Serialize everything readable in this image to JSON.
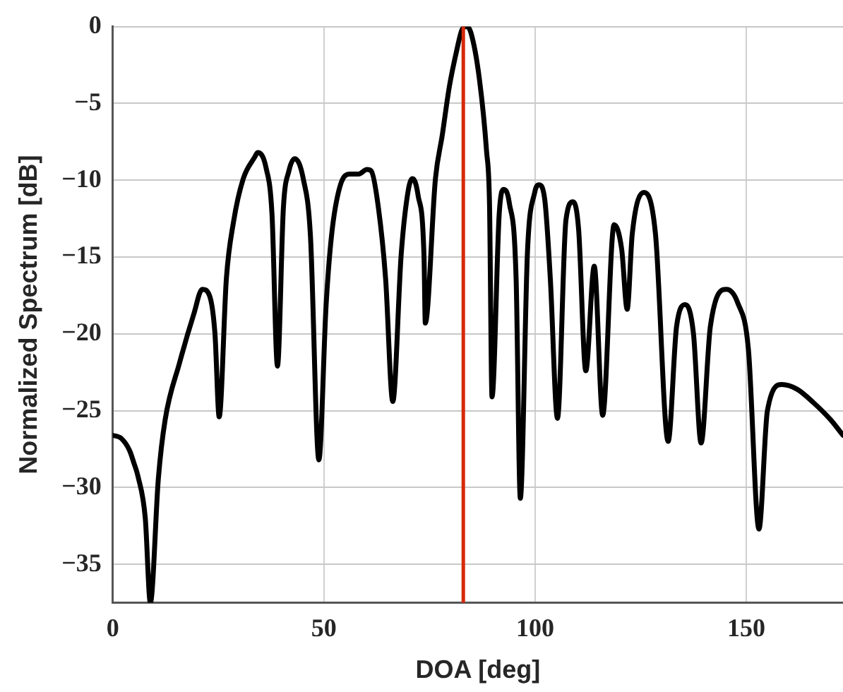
{
  "chart_data": {
    "type": "line",
    "xlabel": "DOA [deg]",
    "ylabel": "Normalized Spectrum [dB]",
    "x": [
      0,
      2,
      4,
      5,
      6,
      7.7,
      8.9,
      10.8,
      12.4,
      15.8,
      19.2,
      21.2,
      22.9,
      24.2,
      25.2,
      26.9,
      28.6,
      30.9,
      33.6,
      34.3,
      36.3,
      37.7,
      39.0,
      40.4,
      41.7,
      43.1,
      45.1,
      46.8,
      48.8,
      50.5,
      51.8,
      53.8,
      56.2,
      57.2,
      58.2,
      60.2,
      61.2,
      62.9,
      64.6,
      66.3,
      68.3,
      70,
      71,
      72.3,
      73.7,
      74.0,
      76.4,
      78,
      79.7,
      81.4,
      82.7,
      83.8,
      84.8,
      86.8,
      88.5,
      89.2,
      89.8,
      91.5,
      92.5,
      93.9,
      95.5,
      96.5,
      98.2,
      99.9,
      100.9,
      102.3,
      103.6,
      105.3,
      107.3,
      109,
      110.3,
      112,
      114,
      116,
      118.7,
      120.5,
      121.8,
      123,
      125.8,
      128.5,
      131.5,
      133.5,
      135.6,
      137.5,
      139.3,
      141.5,
      145.3,
      148,
      150.5,
      153,
      155,
      158.4,
      162,
      166,
      170,
      172.9
    ],
    "series": [
      {
        "color": "#000000",
        "values": [
          -26.6,
          -26.8,
          -27.6,
          -28.4,
          -29.3,
          -32,
          -37.5,
          -29.4,
          -25.6,
          -21.9,
          -18.7,
          -17.1,
          -17.5,
          -20,
          -25.4,
          -16.4,
          -12.7,
          -9.9,
          -8.5,
          -8.2,
          -9.2,
          -12.2,
          -22.1,
          -11.8,
          -9.4,
          -8.6,
          -9.9,
          -13.6,
          -28.2,
          -18.2,
          -13.6,
          -10.4,
          -9.6,
          -9.6,
          -9.6,
          -9.3,
          -9.4,
          -11.8,
          -16.4,
          -24.4,
          -14.8,
          -10.6,
          -9.9,
          -11,
          -15,
          -19.3,
          -9.9,
          -7.1,
          -3.9,
          -1.6,
          -0.2,
          0,
          -0.4,
          -3.4,
          -8.1,
          -11.5,
          -24.1,
          -12.2,
          -10.6,
          -11.5,
          -16.4,
          -30.7,
          -14.6,
          -10.8,
          -10.3,
          -11.3,
          -16.4,
          -25.5,
          -12.6,
          -11.4,
          -13.2,
          -22.4,
          -15.6,
          -25.3,
          -12.9,
          -14.5,
          -18.4,
          -13.5,
          -10.8,
          -13.5,
          -27,
          -19.5,
          -18.1,
          -20,
          -27.1,
          -19.5,
          -17.1,
          -18,
          -21,
          -32.7,
          -25,
          -23.3,
          -23.6,
          -24.5,
          -25.6,
          -26.6
        ]
      }
    ],
    "xlim": [
      0,
      172.9
    ],
    "ylim": [
      -37.5,
      0
    ],
    "xticks": [
      0,
      50,
      100,
      150
    ],
    "yticks": [
      -35,
      -30,
      -25,
      -20,
      -15,
      -10,
      -5,
      0
    ],
    "grid": true,
    "marker": "none",
    "line_style": "solid",
    "ref_lines": [
      {
        "axis": "x",
        "value": 83,
        "color": "#d62a0a",
        "line_style": "solid"
      }
    ]
  }
}
